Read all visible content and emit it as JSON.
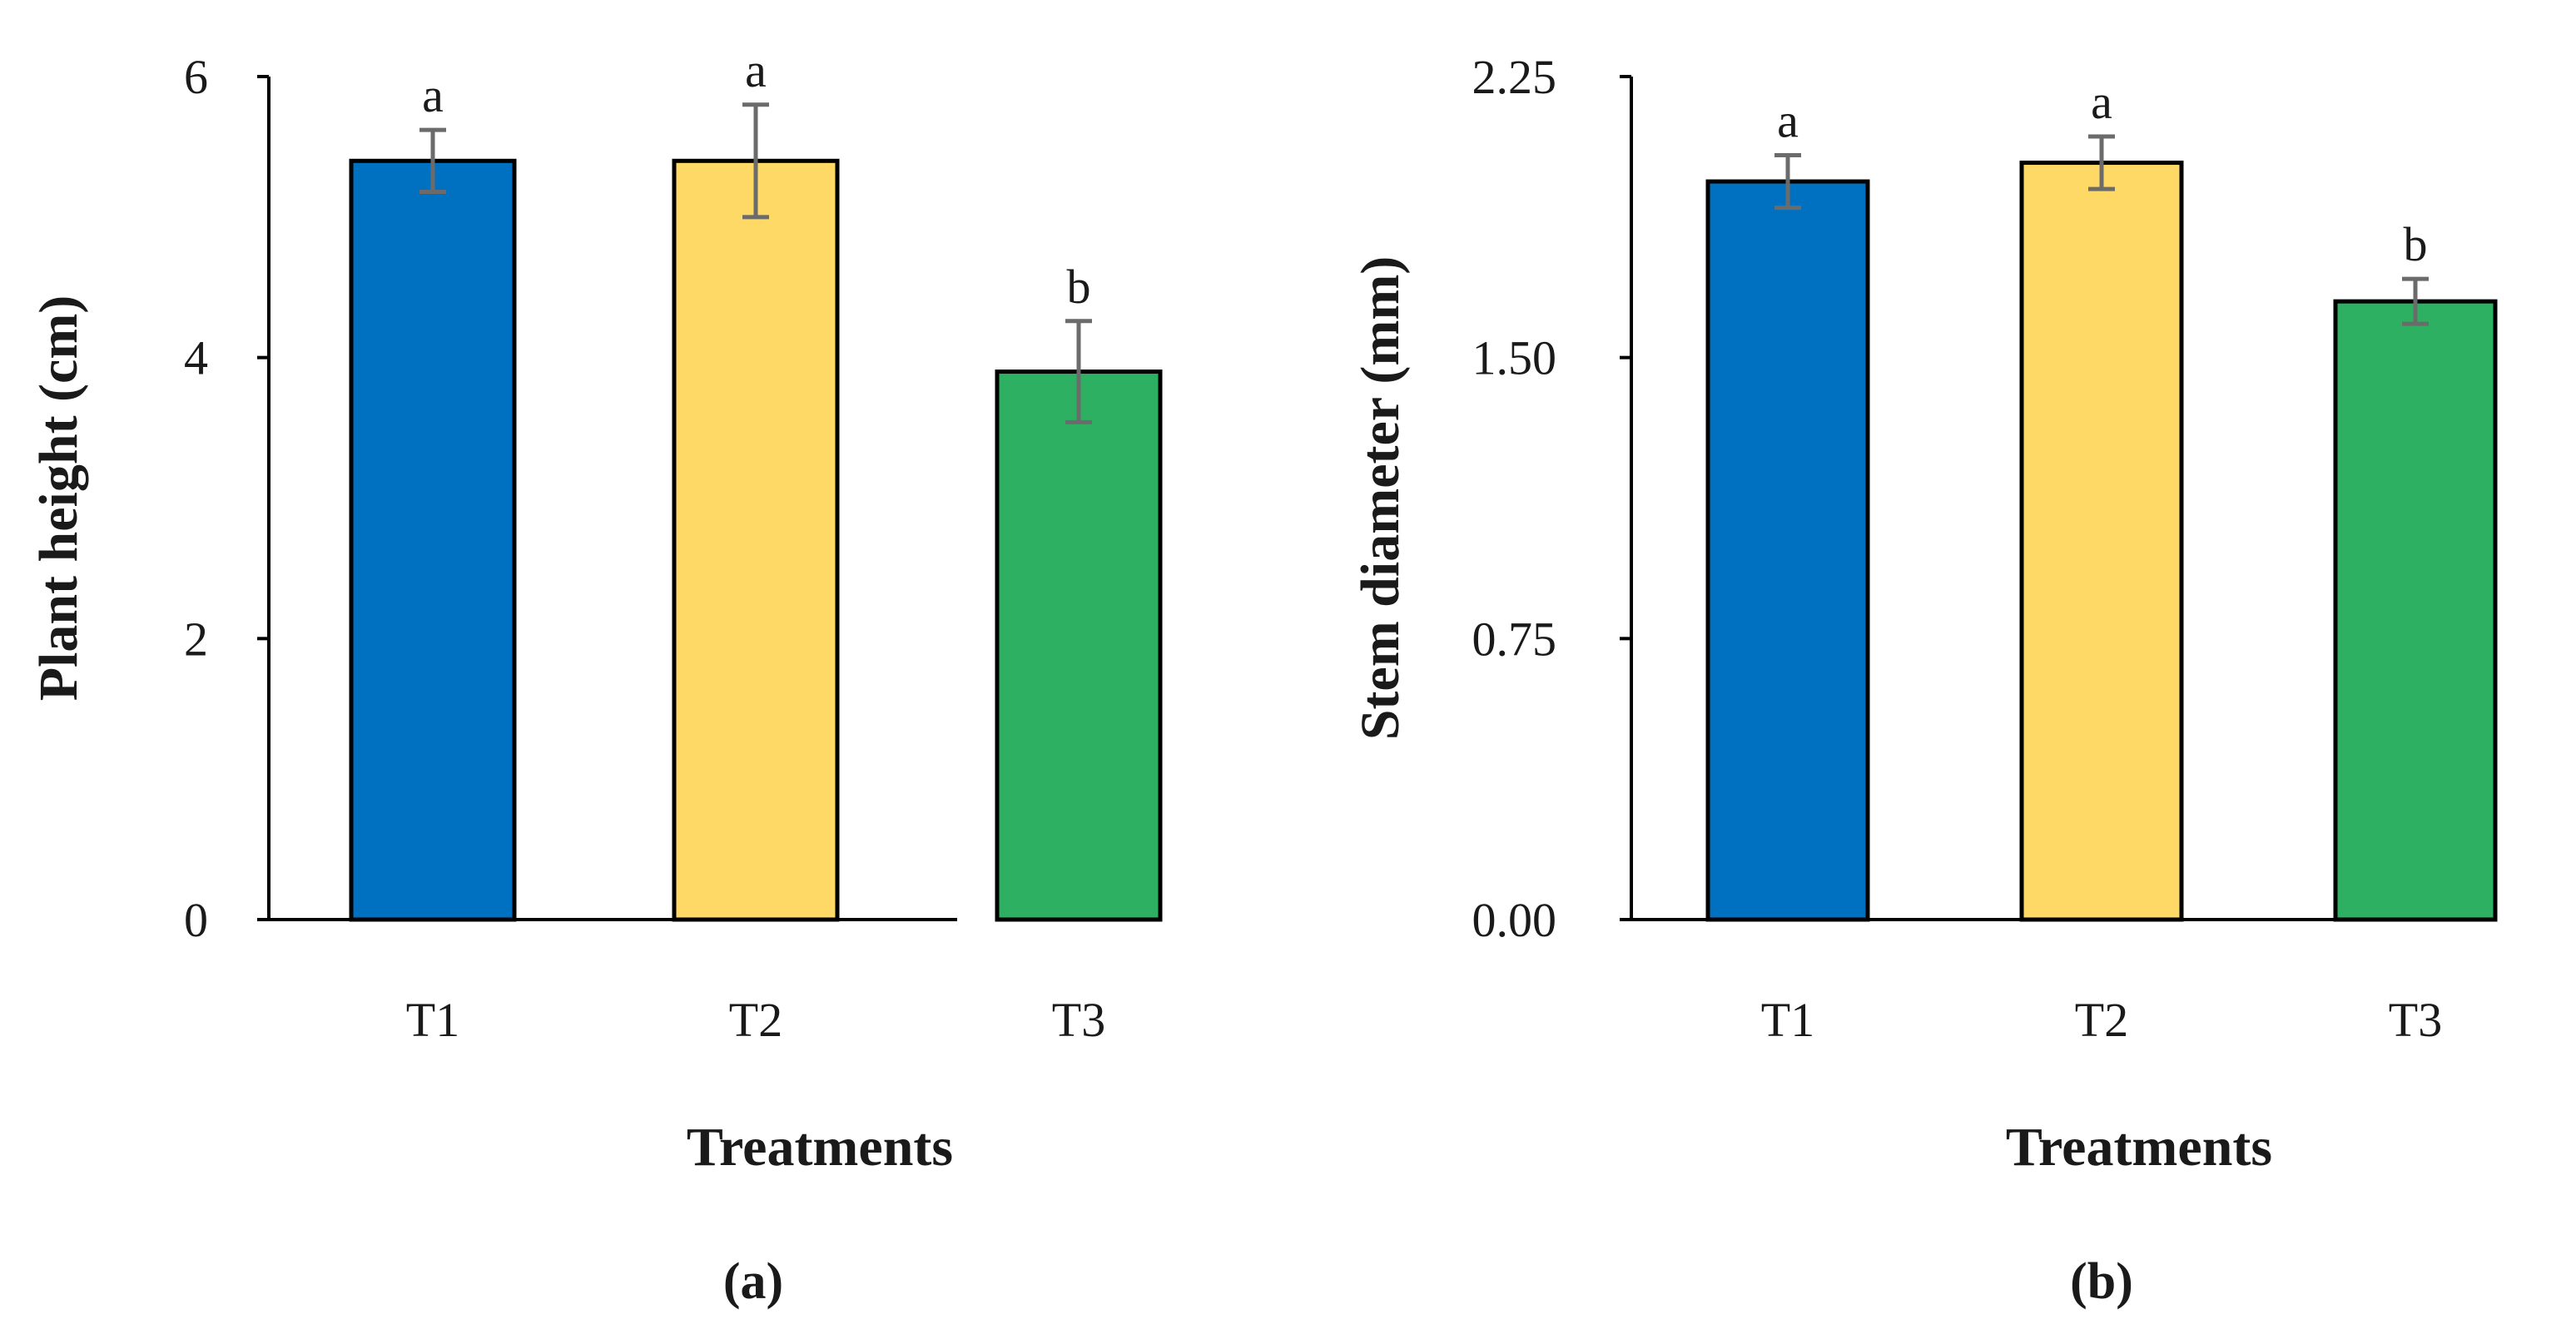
{
  "chart_data": [
    {
      "type": "bar",
      "title": "",
      "panel_label": "(a)",
      "xlabel": "Treatments",
      "ylabel": "Plant height (cm)",
      "categories": [
        "T1",
        "T2",
        "T3"
      ],
      "values": [
        5.4,
        5.4,
        3.9
      ],
      "errors": [
        0.22,
        0.4,
        0.36
      ],
      "significance": [
        "a",
        "a",
        "b"
      ],
      "colors": [
        "#0070c0",
        "#ffd966",
        "#2eb062"
      ],
      "ylim": [
        0,
        6
      ],
      "yticks": [
        0,
        2,
        4,
        6
      ],
      "ytick_labels": [
        "0",
        "2",
        "4",
        "6"
      ],
      "grid": false,
      "legend": "none"
    },
    {
      "type": "bar",
      "title": "",
      "panel_label": "(b)",
      "xlabel": "Treatments",
      "ylabel": "Stem diameter (mm)",
      "categories": [
        "T1",
        "T2",
        "T3"
      ],
      "values": [
        1.97,
        2.02,
        1.65
      ],
      "errors": [
        0.07,
        0.07,
        0.06
      ],
      "significance": [
        "a",
        "a",
        "b"
      ],
      "colors": [
        "#0070c0",
        "#ffd966",
        "#2eb062"
      ],
      "ylim": [
        0,
        2.25
      ],
      "yticks": [
        0,
        0.75,
        1.5,
        2.25
      ],
      "ytick_labels": [
        "0.00",
        "0.75",
        "1.50",
        "2.25"
      ],
      "grid": false,
      "legend": "none"
    }
  ],
  "colors": {
    "axis": "#000000",
    "bar_outline": "#000000",
    "error_bar": "#6b6b6b"
  }
}
